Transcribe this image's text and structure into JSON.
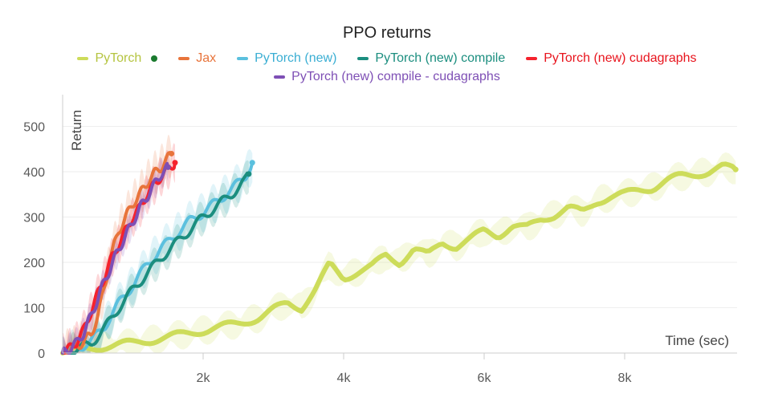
{
  "chart_data": {
    "type": "line",
    "title": "PPO returns",
    "xlabel": "Time (sec)",
    "ylabel": "Return",
    "xlim": [
      0,
      9600
    ],
    "ylim": [
      0,
      570
    ],
    "x_ticks": [
      2000,
      4000,
      6000,
      8000
    ],
    "x_tick_labels": [
      "2k",
      "4k",
      "6k",
      "8k"
    ],
    "y_ticks": [
      0,
      100,
      200,
      300,
      400,
      500
    ],
    "y_tick_labels": [
      "0",
      "100",
      "200",
      "300",
      "400",
      "500"
    ],
    "grid": "horizontal",
    "legend_position": "top",
    "series": [
      {
        "name": "PyTorch",
        "color": "#cddc5a",
        "x": [
          0,
          300,
          600,
          1000,
          1500,
          2000,
          2500,
          2800,
          3000,
          3200,
          3400,
          3600,
          3800,
          4000,
          4200,
          4400,
          4600,
          4800,
          5000,
          5200,
          5400,
          5600,
          5800,
          6000,
          6200,
          6400,
          6600,
          6800,
          7000,
          7200,
          7400,
          7600,
          7800,
          8000,
          8200,
          8400,
          8600,
          8800,
          9000,
          9200,
          9400,
          9580
        ],
        "y": [
          0,
          8,
          15,
          22,
          35,
          50,
          65,
          78,
          95,
          110,
          100,
          140,
          195,
          165,
          180,
          190,
          215,
          200,
          230,
          215,
          245,
          235,
          250,
          270,
          260,
          280,
          275,
          295,
          305,
          320,
          310,
          335,
          345,
          350,
          360,
          365,
          380,
          390,
          395,
          400,
          410,
          405
        ]
      },
      {
        "name": "Jax",
        "color": "#e8743b",
        "x": [
          0,
          150,
          300,
          400,
          500,
          600,
          700,
          800,
          900,
          1000,
          1100,
          1200,
          1300,
          1400,
          1500,
          1550
        ],
        "y": [
          0,
          10,
          25,
          40,
          80,
          150,
          220,
          270,
          300,
          330,
          350,
          375,
          395,
          410,
          430,
          440
        ]
      },
      {
        "name": "PyTorch (new)",
        "color": "#5bc0de",
        "x": [
          0,
          200,
          400,
          600,
          800,
          1000,
          1200,
          1400,
          1600,
          1800,
          2000,
          2200,
          2400,
          2600,
          2700
        ],
        "y": [
          0,
          10,
          25,
          60,
          110,
          150,
          195,
          230,
          260,
          290,
          310,
          335,
          360,
          390,
          420
        ]
      },
      {
        "name": "PyTorch (new) compile",
        "color": "#1b8e7f",
        "x": [
          0,
          200,
          400,
          600,
          800,
          1000,
          1200,
          1400,
          1600,
          1800,
          2000,
          2200,
          2400,
          2600,
          2650
        ],
        "y": [
          0,
          8,
          20,
          55,
          100,
          140,
          175,
          210,
          240,
          270,
          300,
          325,
          350,
          380,
          395
        ]
      },
      {
        "name": "PyTorch (new) cudagraphs",
        "color": "#f5222d",
        "x": [
          0,
          100,
          200,
          300,
          400,
          500,
          600,
          700,
          800,
          900,
          1000,
          1100,
          1200,
          1300,
          1400,
          1500,
          1600
        ],
        "y": [
          0,
          10,
          25,
          50,
          90,
          130,
          170,
          210,
          240,
          270,
          300,
          320,
          350,
          370,
          390,
          405,
          420
        ]
      },
      {
        "name": "PyTorch (new) compile - cudagraphs",
        "color": "#7e4fb5",
        "x": [
          0,
          100,
          200,
          300,
          400,
          500,
          600,
          700,
          800,
          900,
          1000,
          1100,
          1200,
          1300,
          1400,
          1500
        ],
        "y": [
          0,
          10,
          22,
          45,
          80,
          120,
          160,
          195,
          230,
          260,
          290,
          320,
          345,
          370,
          395,
          410
        ]
      }
    ],
    "legend_marker_color": "#1a7a2e"
  }
}
